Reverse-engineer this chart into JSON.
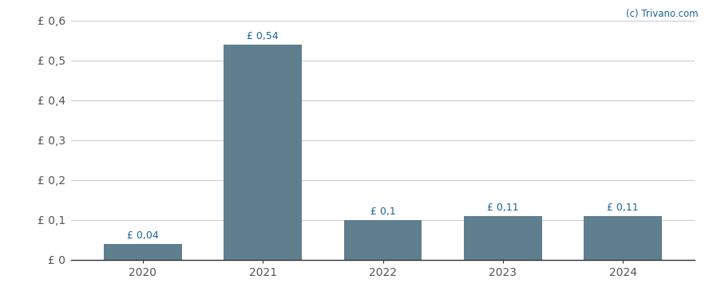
{
  "categories": [
    "2020",
    "2021",
    "2022",
    "2023",
    "2024"
  ],
  "x_positions": [
    0,
    1,
    2,
    3,
    4
  ],
  "values": [
    0.04,
    0.54,
    0.1,
    0.11,
    0.11
  ],
  "bar_color": "#5f7f8f",
  "bar_width": 0.65,
  "ylim": [
    0,
    0.6
  ],
  "yticks": [
    0.0,
    0.1,
    0.2,
    0.3,
    0.4,
    0.5,
    0.6
  ],
  "ytick_labels": [
    "£ 0",
    "£ 0,1",
    "£ 0,2",
    "£ 0,3",
    "£ 0,4",
    "£ 0,5",
    "£ 0,6"
  ],
  "bar_labels": [
    "£ 0,04",
    "£ 0,54",
    "£ 0,1",
    "£ 0,11",
    "£ 0,11"
  ],
  "watermark": "(c) Trivano.com",
  "watermark_color": "#1a6496",
  "background_color": "#ffffff",
  "grid_color": "#cccccc",
  "bar_label_color": "#1a6496",
  "axis_label_color": "#555555",
  "tick_label_fontsize": 10,
  "bar_label_fontsize": 9,
  "xlim": [
    -0.6,
    4.6
  ]
}
